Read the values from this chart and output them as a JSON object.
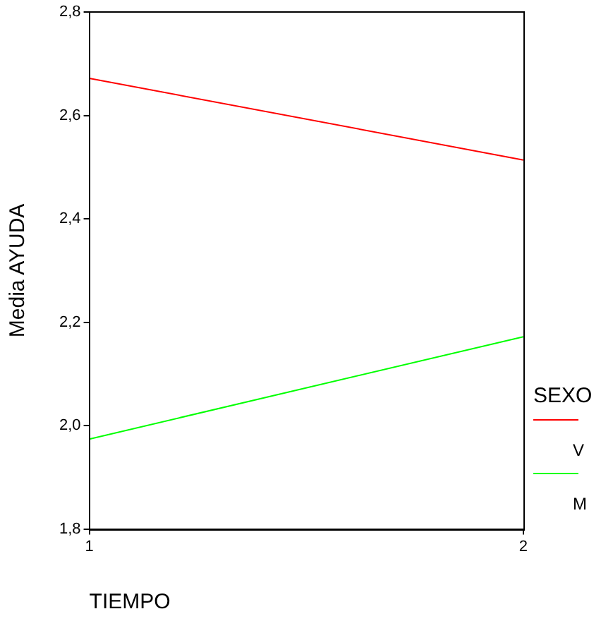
{
  "chart_data": {
    "type": "line",
    "xlabel": "TIEMPO",
    "ylabel": "Media AYUDA",
    "legend_title": "SEXO",
    "legend": "right",
    "grid": false,
    "marker": "none",
    "line_style": "solid",
    "x": [
      1,
      2
    ],
    "xlim": [
      1,
      2
    ],
    "xticks": [
      1,
      2
    ],
    "ylim": [
      1.8,
      2.8
    ],
    "yticks": [
      {
        "value": 1.8,
        "label": "1,8"
      },
      {
        "value": 2.0,
        "label": "2,0"
      },
      {
        "value": 2.2,
        "label": "2,2"
      },
      {
        "value": 2.4,
        "label": "2,4"
      },
      {
        "value": 2.6,
        "label": "2,6"
      },
      {
        "value": 2.8,
        "label": "2,8"
      }
    ],
    "series": [
      {
        "name": "V",
        "color": "#ff0000",
        "values": [
          2.672,
          2.514
        ]
      },
      {
        "name": "M",
        "color": "#00ff00",
        "values": [
          1.974,
          2.172
        ]
      }
    ]
  }
}
